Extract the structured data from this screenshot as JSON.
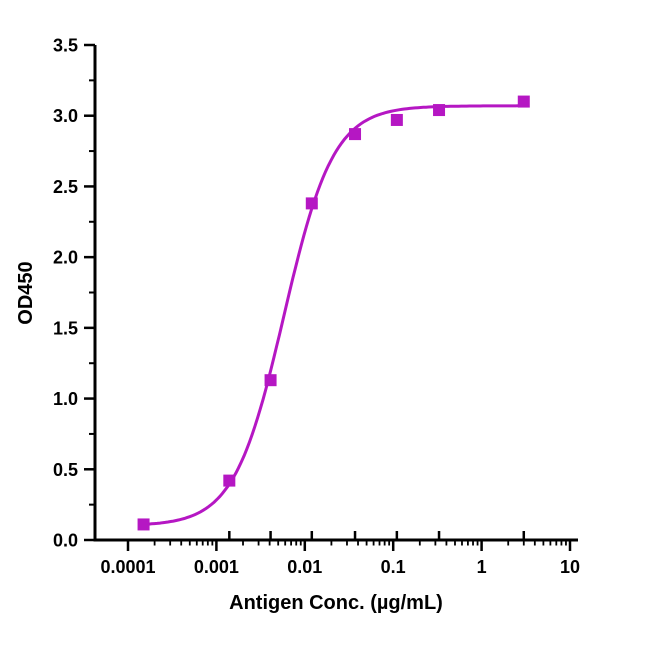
{
  "figure": {
    "background": "#ffffff",
    "axis_color": "#000000",
    "accent_color": "#B517C3"
  },
  "chart_data": {
    "type": "scatter",
    "title": "",
    "xlabel": "Antigen Conc. (µg/mL)",
    "ylabel": "OD450",
    "x_scale": "log10",
    "xlim": [
      0.0001,
      10
    ],
    "ylim": [
      0,
      3.5
    ],
    "grid": false,
    "legend": "none",
    "x_ticks": [
      {
        "value": 0.0001,
        "label": "0.0001"
      },
      {
        "value": 0.001,
        "label": "0.001"
      },
      {
        "value": 0.01,
        "label": "0.01"
      },
      {
        "value": 0.1,
        "label": "0.1"
      },
      {
        "value": 1,
        "label": "1"
      },
      {
        "value": 10,
        "label": "10"
      }
    ],
    "y_ticks": [
      {
        "value": 0,
        "label": "0.0"
      },
      {
        "value": 0.5,
        "label": "0.5"
      },
      {
        "value": 1,
        "label": "1.0"
      },
      {
        "value": 1.5,
        "label": "1.5"
      },
      {
        "value": 2,
        "label": "2.0"
      },
      {
        "value": 2.5,
        "label": "2.5"
      },
      {
        "value": 3,
        "label": "3.0"
      },
      {
        "value": 3.5,
        "label": "3.5"
      }
    ],
    "y_minor_step": 0.25,
    "series": [
      {
        "name": "OD450",
        "marker": "square",
        "color": "#B517C3",
        "points": [
          {
            "x": 0.00015,
            "y": 0.11
          },
          {
            "x": 0.0014,
            "y": 0.42
          },
          {
            "x": 0.0041,
            "y": 1.13
          },
          {
            "x": 0.012,
            "y": 2.38
          },
          {
            "x": 0.037,
            "y": 2.87
          },
          {
            "x": 0.11,
            "y": 2.97
          },
          {
            "x": 0.33,
            "y": 3.04
          },
          {
            "x": 3,
            "y": 3.1
          }
        ],
        "fit": {
          "model": "4PL",
          "bottom": 0.1,
          "top": 3.07,
          "ec50": 0.0058,
          "hill": 1.55
        }
      }
    ]
  }
}
